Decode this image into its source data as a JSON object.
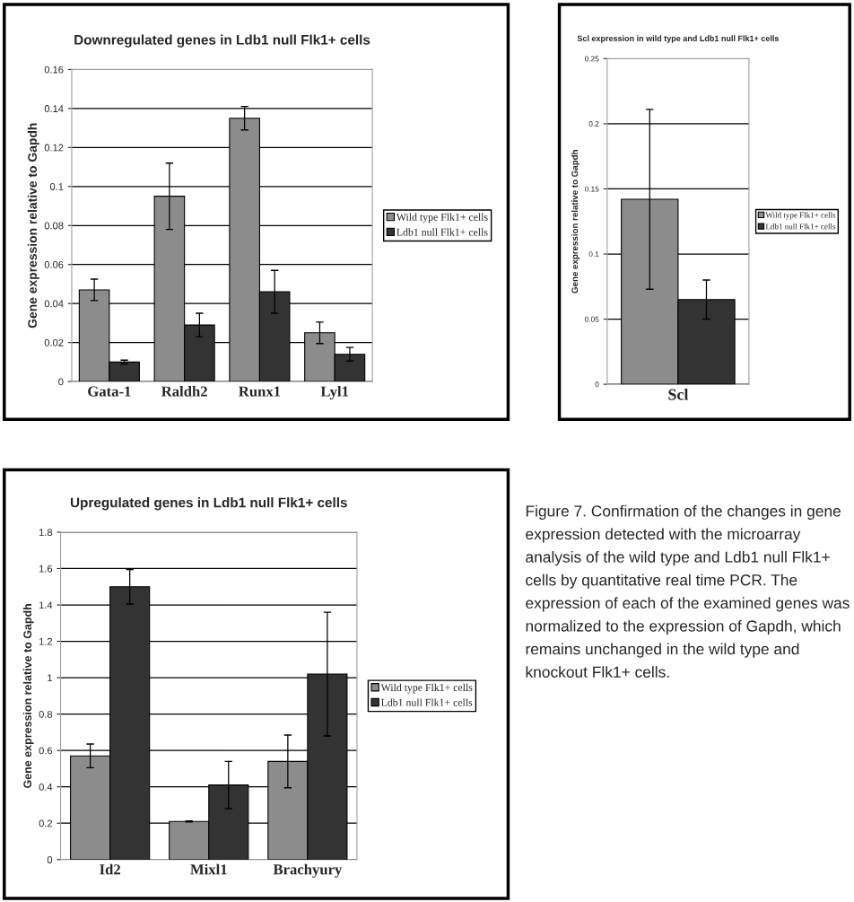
{
  "chart_data": [
    {
      "type": "bar",
      "title": "Downregulated genes in Ldb1 null Flk1+ cells",
      "ylabel": "Gene expression relative to Gapdh",
      "categories": [
        "Gata-1",
        "Raldh2",
        "Runx1",
        "Lyl1"
      ],
      "series": [
        {
          "name": "Wild type Flk1+ cells",
          "color": "#8c8c8c",
          "values": [
            0.047,
            0.095,
            0.135,
            0.025
          ],
          "errors": [
            0.0055,
            0.017,
            0.006,
            0.0055
          ]
        },
        {
          "name": "Ldb1 null Flk1+ cells",
          "color": "#333333",
          "values": [
            0.01,
            0.029,
            0.046,
            0.014
          ],
          "errors": [
            0.001,
            0.006,
            0.011,
            0.0035
          ]
        }
      ],
      "ylim": [
        0,
        0.16
      ],
      "yticks": [
        0,
        0.02,
        0.04,
        0.06,
        0.08,
        0.1,
        0.12,
        0.14,
        0.16
      ],
      "grid": "y",
      "legend": "right"
    },
    {
      "type": "bar",
      "title": "Scl expression in wild type and Ldb1 null Flk1+ cells",
      "ylabel": "Gene expression relative to Gapdh",
      "categories": [
        "Scl"
      ],
      "series": [
        {
          "name": "Wild type Flk1+ cells",
          "color": "#8c8c8c",
          "values": [
            0.142
          ],
          "errors": [
            0.069
          ]
        },
        {
          "name": "Ldb1 null Flk1+ cells",
          "color": "#333333",
          "values": [
            0.065
          ],
          "errors": [
            0.015
          ]
        }
      ],
      "ylim": [
        0,
        0.25
      ],
      "yticks": [
        0,
        0.05,
        0.1,
        0.15,
        0.2,
        0.25
      ],
      "grid": "y",
      "legend": "right"
    },
    {
      "type": "bar",
      "title": "Upregulated genes in Ldb1 null Flk1+ cells",
      "ylabel": "Gene expression relative to Gapdh",
      "categories": [
        "Id2",
        "Mixl1",
        "Brachyury"
      ],
      "series": [
        {
          "name": "Wild type Flk1+ cells",
          "color": "#8c8c8c",
          "values": [
            0.57,
            0.21,
            0.54
          ],
          "errors": [
            0.065,
            0.003,
            0.145
          ]
        },
        {
          "name": "Ldb1 null Flk1+ cells",
          "color": "#333333",
          "values": [
            1.5,
            0.41,
            1.02
          ],
          "errors": [
            0.095,
            0.13,
            0.34
          ]
        }
      ],
      "ylim": [
        0,
        1.8
      ],
      "yticks": [
        0,
        0.2,
        0.4,
        0.6,
        0.8,
        1,
        1.2,
        1.4,
        1.6,
        1.8
      ],
      "grid": "y",
      "legend": "right",
      "annotations": [
        "Figure 7. Confirmation of the changes in gene expression detected with the microarray analysis of the wild type and Ldb1 null Flk1+ cells by quantitative real time PCR. The expression of each of the examined genes was normalized to the expression of Gapdh, which remains unchanged in the wild type and knockout Flk1+ cells."
      ]
    }
  ]
}
